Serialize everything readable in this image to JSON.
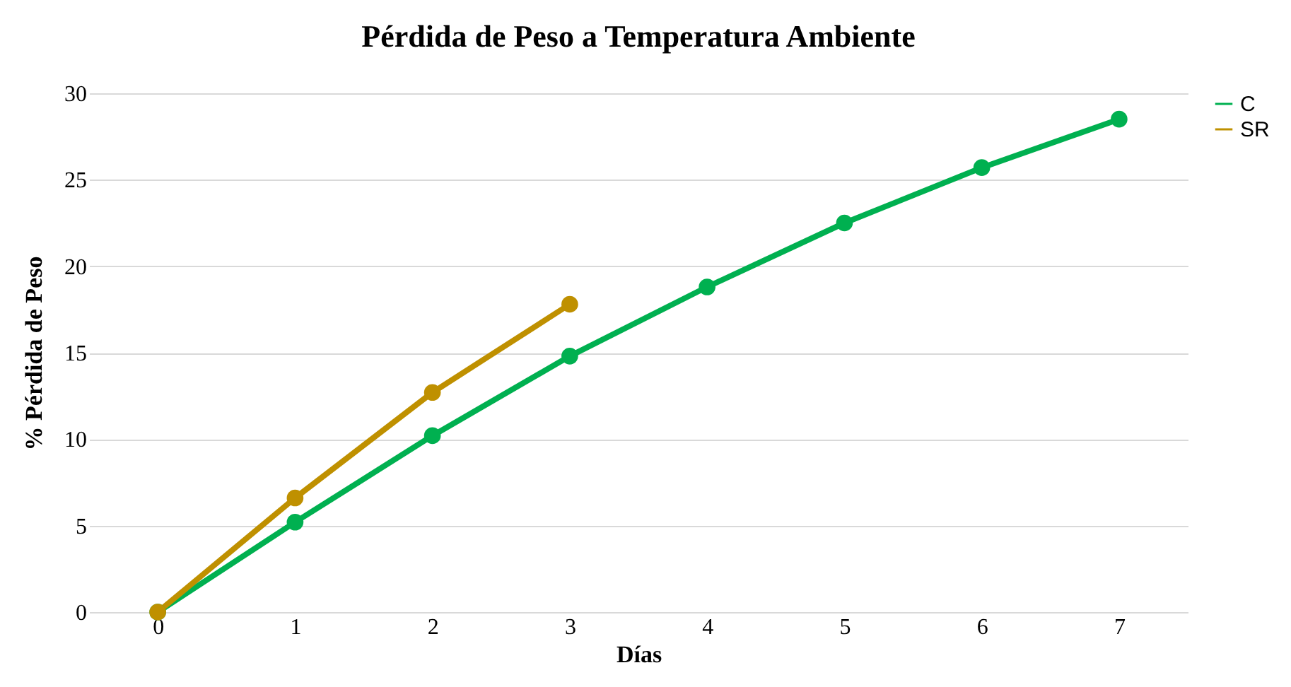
{
  "chart_data": {
    "type": "line",
    "title": "Pérdida de Peso a Temperatura Ambiente",
    "xlabel": "Días",
    "ylabel": "% Pérdida de Peso",
    "categories": [
      "0",
      "1",
      "2",
      "3",
      "4",
      "5",
      "6",
      "7"
    ],
    "series": [
      {
        "name": "C",
        "color": "#00b050",
        "values": [
          0,
          5.2,
          10.2,
          14.8,
          18.8,
          22.5,
          25.7,
          28.5
        ]
      },
      {
        "name": "SR",
        "color": "#bf9000",
        "values": [
          0,
          6.6,
          12.7,
          17.8,
          null,
          null,
          null,
          null
        ]
      }
    ],
    "ylim": [
      0,
      30
    ],
    "yticks": [
      0,
      5,
      10,
      15,
      20,
      25,
      30
    ],
    "grid": "y",
    "legend": "right",
    "marker": "circle",
    "line_style": "solid"
  }
}
